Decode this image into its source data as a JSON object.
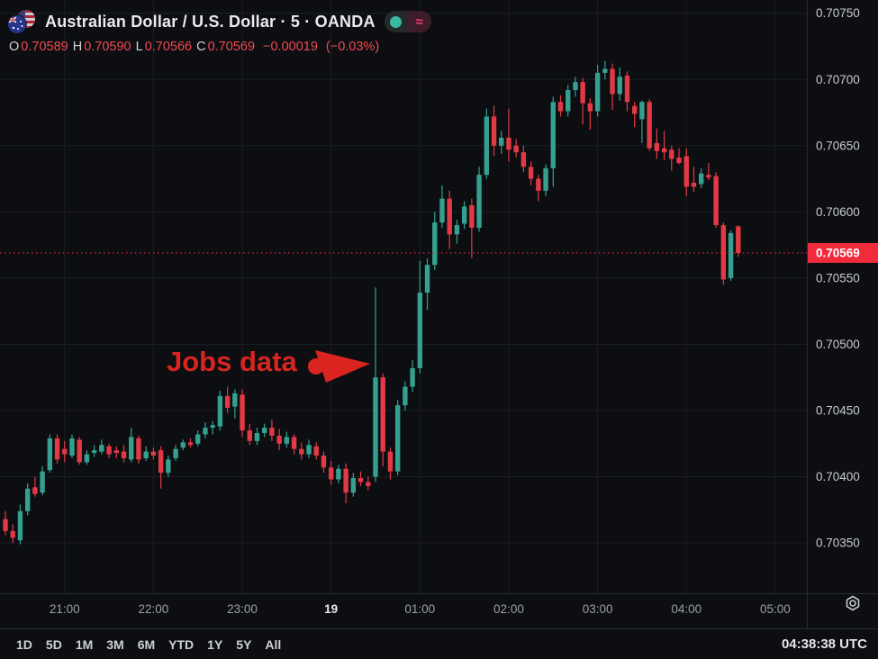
{
  "header": {
    "title": "Australian Dollar / U.S. Dollar · 5 · OANDA",
    "approx_icon": "≈",
    "icons": {
      "symbol_flags": "aud-usd-pair-flags",
      "market_status": "market-open-dot",
      "compare": "approx-equals"
    }
  },
  "ohlc_bar": {
    "open_label": "O",
    "open": "0.70589",
    "high_label": "H",
    "high": "0.70590",
    "low_label": "L",
    "low": "0.70566",
    "close_label": "C",
    "close": "0.70569",
    "change": "−0.00019",
    "change_pct": "(−0.03%)"
  },
  "chart_data": {
    "type": "candlestick",
    "title": "Australian Dollar / U.S. Dollar",
    "interval": "5",
    "exchange": "OANDA",
    "ylim": [
      0.70312,
      0.7076
    ],
    "price_gridlines": [
      0.7035,
      0.704,
      0.7045,
      0.705,
      0.7055,
      0.706,
      0.7065,
      0.707,
      0.7075
    ],
    "time_axis": [
      {
        "label": "21:00",
        "index": 8
      },
      {
        "label": "22:00",
        "index": 20
      },
      {
        "label": "23:00",
        "index": 32
      },
      {
        "label": "19",
        "index": 44,
        "bold": true
      },
      {
        "label": "01:00",
        "index": 56
      },
      {
        "label": "02:00",
        "index": 68
      },
      {
        "label": "03:00",
        "index": 80
      },
      {
        "label": "04:00",
        "index": 92
      },
      {
        "label": "05:00",
        "index": 104
      }
    ],
    "last_price_value": 0.70569,
    "annotation": {
      "text": "Jobs data"
    },
    "colors": {
      "up": "#35a08f",
      "down": "#e13a46",
      "last_price": "#f22b3c",
      "grid": "#1a1d23",
      "axis_text": "#c7cacf",
      "time_text": "#9b9fa6",
      "bold_time_text": "#e8eaed",
      "separator": "#262a33",
      "annotation_red": "#d92420"
    },
    "candles": [
      [
        "20:20",
        0.70368,
        0.70374,
        0.70356,
        0.70359
      ],
      [
        "20:25",
        0.70359,
        0.70364,
        0.7035,
        0.70354
      ],
      [
        "20:30",
        0.70352,
        0.70379,
        0.70349,
        0.70374
      ],
      [
        "20:35",
        0.70374,
        0.70395,
        0.70371,
        0.70391
      ],
      [
        "20:40",
        0.70392,
        0.704,
        0.70385,
        0.70387
      ],
      [
        "20:45",
        0.70388,
        0.70408,
        0.70386,
        0.70404
      ],
      [
        "20:50",
        0.70405,
        0.70432,
        0.70403,
        0.70429
      ],
      [
        "20:55",
        0.70429,
        0.70432,
        0.7041,
        0.70413
      ],
      [
        "21:00",
        0.70421,
        0.70427,
        0.70411,
        0.70417
      ],
      [
        "21:05",
        0.70416,
        0.70432,
        0.70414,
        0.70429
      ],
      [
        "21:10",
        0.70428,
        0.7043,
        0.70409,
        0.70411
      ],
      [
        "21:15",
        0.70411,
        0.7042,
        0.70409,
        0.70417
      ],
      [
        "21:20",
        0.70418,
        0.70424,
        0.70415,
        0.7042
      ],
      [
        "21:25",
        0.70419,
        0.70428,
        0.70417,
        0.70424
      ],
      [
        "21:30",
        0.70423,
        0.70425,
        0.70414,
        0.70417
      ],
      [
        "21:35",
        0.7042,
        0.70423,
        0.70414,
        0.70418
      ],
      [
        "21:40",
        0.70419,
        0.70424,
        0.70411,
        0.70414
      ],
      [
        "21:45",
        0.70413,
        0.70437,
        0.70411,
        0.7043
      ],
      [
        "21:50",
        0.70429,
        0.70431,
        0.7041,
        0.70413
      ],
      [
        "21:55",
        0.70414,
        0.70423,
        0.70412,
        0.70419
      ],
      [
        "22:00",
        0.70419,
        0.70422,
        0.70413,
        0.70416
      ],
      [
        "22:05",
        0.7042,
        0.70423,
        0.70391,
        0.70403
      ],
      [
        "22:10",
        0.70403,
        0.70416,
        0.704,
        0.70413
      ],
      [
        "22:15",
        0.70414,
        0.70424,
        0.70412,
        0.70421
      ],
      [
        "22:20",
        0.70422,
        0.70428,
        0.7042,
        0.70426
      ],
      [
        "22:25",
        0.70426,
        0.70429,
        0.70422,
        0.70424
      ],
      [
        "22:30",
        0.70425,
        0.70435,
        0.70423,
        0.70432
      ],
      [
        "22:35",
        0.70432,
        0.70441,
        0.70429,
        0.70437
      ],
      [
        "22:40",
        0.70437,
        0.70442,
        0.70432,
        0.70439
      ],
      [
        "22:45",
        0.70438,
        0.70465,
        0.70435,
        0.70461
      ],
      [
        "22:50",
        0.70461,
        0.70468,
        0.70448,
        0.70452
      ],
      [
        "22:55",
        0.70453,
        0.70466,
        0.70444,
        0.70463
      ],
      [
        "23:00",
        0.70462,
        0.70466,
        0.7043,
        0.70435
      ],
      [
        "23:05",
        0.70435,
        0.7044,
        0.70424,
        0.70427
      ],
      [
        "23:10",
        0.70427,
        0.70437,
        0.70424,
        0.70433
      ],
      [
        "23:15",
        0.70433,
        0.7044,
        0.7043,
        0.70437
      ],
      [
        "23:20",
        0.70437,
        0.70443,
        0.70427,
        0.70431
      ],
      [
        "23:25",
        0.70431,
        0.70436,
        0.7042,
        0.70425
      ],
      [
        "23:30",
        0.70425,
        0.70434,
        0.70422,
        0.7043
      ],
      [
        "23:35",
        0.7043,
        0.70432,
        0.70417,
        0.70421
      ],
      [
        "23:40",
        0.70421,
        0.70426,
        0.70413,
        0.70417
      ],
      [
        "23:45",
        0.70417,
        0.70428,
        0.70414,
        0.70424
      ],
      [
        "23:50",
        0.70423,
        0.70426,
        0.70413,
        0.70416
      ],
      [
        "23:55",
        0.70416,
        0.70419,
        0.70403,
        0.70407
      ],
      [
        "00:00",
        0.70407,
        0.70412,
        0.70394,
        0.70398
      ],
      [
        "00:05",
        0.70398,
        0.70409,
        0.70395,
        0.70406
      ],
      [
        "00:10",
        0.70406,
        0.7041,
        0.7038,
        0.70388
      ],
      [
        "00:15",
        0.70388,
        0.70403,
        0.70385,
        0.70399
      ],
      [
        "00:20",
        0.70399,
        0.70404,
        0.70393,
        0.70396
      ],
      [
        "00:25",
        0.70396,
        0.704,
        0.7039,
        0.70393
      ],
      [
        "00:30",
        0.704,
        0.70543,
        0.70396,
        0.70475
      ],
      [
        "00:35",
        0.70475,
        0.70478,
        0.70408,
        0.70419
      ],
      [
        "00:40",
        0.70419,
        0.70422,
        0.70398,
        0.70404
      ],
      [
        "00:45",
        0.70404,
        0.70458,
        0.70401,
        0.70454
      ],
      [
        "00:50",
        0.70454,
        0.70472,
        0.7045,
        0.70468
      ],
      [
        "00:55",
        0.70468,
        0.70488,
        0.70464,
        0.70482
      ],
      [
        "01:00",
        0.70482,
        0.70563,
        0.70478,
        0.70539
      ],
      [
        "01:05",
        0.70539,
        0.70565,
        0.70526,
        0.7056
      ],
      [
        "01:10",
        0.7056,
        0.706,
        0.70556,
        0.70592
      ],
      [
        "01:15",
        0.70592,
        0.7062,
        0.70588,
        0.7061
      ],
      [
        "01:20",
        0.7061,
        0.70616,
        0.70572,
        0.70583
      ],
      [
        "01:25",
        0.70583,
        0.70594,
        0.70576,
        0.7059
      ],
      [
        "01:30",
        0.70591,
        0.70608,
        0.70587,
        0.70604
      ],
      [
        "01:35",
        0.70605,
        0.7061,
        0.70565,
        0.70588
      ],
      [
        "01:40",
        0.70588,
        0.70634,
        0.70585,
        0.70628
      ],
      [
        "01:45",
        0.70628,
        0.70678,
        0.70625,
        0.70672
      ],
      [
        "01:50",
        0.70672,
        0.7068,
        0.70642,
        0.7065
      ],
      [
        "01:55",
        0.7065,
        0.70661,
        0.70644,
        0.70656
      ],
      [
        "02:00",
        0.70656,
        0.70678,
        0.70638,
        0.70647
      ],
      [
        "02:05",
        0.7065,
        0.70655,
        0.70641,
        0.70645
      ],
      [
        "02:10",
        0.70645,
        0.7065,
        0.7063,
        0.70634
      ],
      [
        "02:15",
        0.70634,
        0.70638,
        0.7062,
        0.70625
      ],
      [
        "02:20",
        0.70625,
        0.70628,
        0.70608,
        0.70616
      ],
      [
        "02:25",
        0.70616,
        0.70636,
        0.70612,
        0.70633
      ],
      [
        "02:30",
        0.70633,
        0.70687,
        0.70619,
        0.70683
      ],
      [
        "02:35",
        0.70683,
        0.70688,
        0.70672,
        0.70676
      ],
      [
        "02:40",
        0.70676,
        0.70696,
        0.70672,
        0.70692
      ],
      [
        "02:45",
        0.70692,
        0.70702,
        0.70687,
        0.70698
      ],
      [
        "02:50",
        0.70698,
        0.70701,
        0.70666,
        0.70682
      ],
      [
        "02:55",
        0.70682,
        0.70686,
        0.70662,
        0.70676
      ],
      [
        "03:00",
        0.70676,
        0.70711,
        0.70672,
        0.70705
      ],
      [
        "03:05",
        0.70705,
        0.70714,
        0.707,
        0.70708
      ],
      [
        "03:10",
        0.70708,
        0.70712,
        0.70677,
        0.70689
      ],
      [
        "03:15",
        0.70689,
        0.70709,
        0.70684,
        0.70702
      ],
      [
        "03:20",
        0.70703,
        0.70706,
        0.70676,
        0.70683
      ],
      [
        "03:25",
        0.7068,
        0.70683,
        0.70664,
        0.70674
      ],
      [
        "03:30",
        0.7067,
        0.70684,
        0.70652,
        0.70683
      ],
      [
        "03:35",
        0.70683,
        0.70685,
        0.70646,
        0.70648
      ],
      [
        "03:40",
        0.70652,
        0.70663,
        0.7064,
        0.70646
      ],
      [
        "03:45",
        0.70648,
        0.70661,
        0.70639,
        0.70645
      ],
      [
        "03:50",
        0.70647,
        0.7065,
        0.70631,
        0.7064
      ],
      [
        "03:55",
        0.70641,
        0.70648,
        0.70636,
        0.70637
      ],
      [
        "04:00",
        0.70642,
        0.70648,
        0.70612,
        0.70619
      ],
      [
        "04:05",
        0.70622,
        0.70634,
        0.70615,
        0.70619
      ],
      [
        "04:10",
        0.70621,
        0.70633,
        0.70618,
        0.70629
      ],
      [
        "04:15",
        0.70628,
        0.70637,
        0.70624,
        0.70626
      ],
      [
        "04:20",
        0.70627,
        0.7063,
        0.70588,
        0.7059
      ],
      [
        "04:25",
        0.7059,
        0.70592,
        0.70545,
        0.70549
      ],
      [
        "04:30",
        0.7055,
        0.70586,
        0.70548,
        0.70584
      ],
      [
        "04:35",
        0.70589,
        0.7059,
        0.70566,
        0.70569
      ]
    ]
  },
  "toolbar": {
    "ranges": [
      "1D",
      "5D",
      "1M",
      "3M",
      "6M",
      "YTD",
      "1Y",
      "5Y",
      "All"
    ],
    "clock": "04:38:38 UTC"
  },
  "icons": {
    "settings": "timezone-settings-icon"
  }
}
